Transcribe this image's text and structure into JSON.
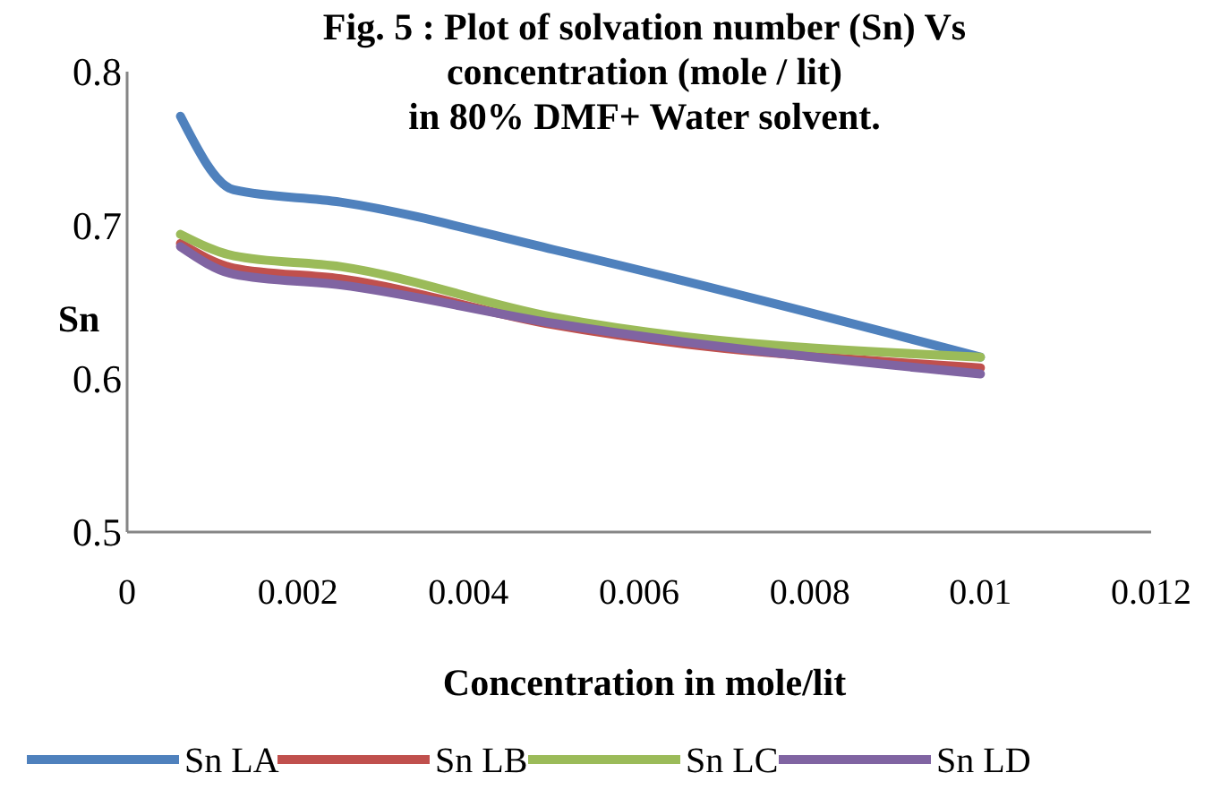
{
  "chart_data": {
    "type": "line",
    "title": "Fig. 5 : Plot of solvation number (Sn) Vs\nconcentration (mole / lit)\nin 80% DMF+ Water  solvent.",
    "xlabel": "Concentration in mole/lit",
    "ylabel": "Sn",
    "x": [
      0.000625,
      0.00125,
      0.0025,
      0.005,
      0.01
    ],
    "series": [
      {
        "name": "Sn LA",
        "color": "#4f81bd",
        "values": [
          0.771,
          0.723,
          0.715,
          0.684,
          0.614
        ]
      },
      {
        "name": "Sn LB",
        "color": "#c0504d",
        "values": [
          0.688,
          0.672,
          0.665,
          0.635,
          0.607
        ]
      },
      {
        "name": "Sn LC",
        "color": "#9bbb59",
        "values": [
          0.694,
          0.68,
          0.673,
          0.64,
          0.614
        ]
      },
      {
        "name": "Sn LD",
        "color": "#8064a2",
        "values": [
          0.686,
          0.668,
          0.661,
          0.636,
          0.603
        ]
      }
    ],
    "xlim": [
      0,
      0.012
    ],
    "xticks": [
      0,
      0.002,
      0.004,
      0.006,
      0.008,
      0.01,
      0.012
    ],
    "ylim": [
      0.5,
      0.8
    ],
    "yticks": [
      0.5,
      0.6,
      0.7,
      0.8
    ],
    "legend": "bottom",
    "grid": false,
    "marker": "none",
    "line_style": "solid"
  }
}
